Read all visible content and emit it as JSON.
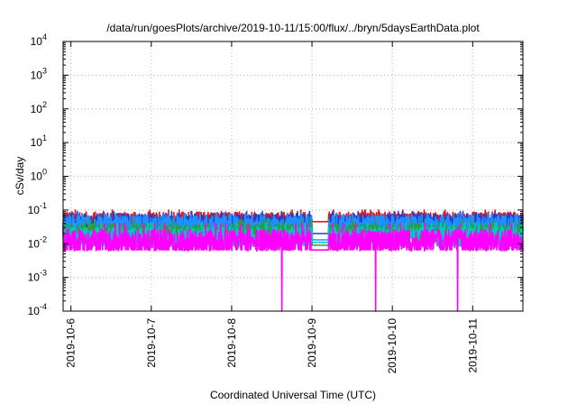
{
  "chart_data": {
    "type": "line",
    "title": "/data/run/goesPlots/archive/2019-10-11/15:00/flux/../bryn/5daysEarthData.plot",
    "xlabel": "Coordinated Universal Time (UTC)",
    "ylabel": "cSv/day",
    "y_scale": "log",
    "ylim": [
      0.0001,
      10000
    ],
    "y_ticks": [
      {
        "value": 0.0001,
        "base": "10",
        "exp": "-4"
      },
      {
        "value": 0.001,
        "base": "10",
        "exp": "-3"
      },
      {
        "value": 0.01,
        "base": "10",
        "exp": "-2"
      },
      {
        "value": 0.1,
        "base": "10",
        "exp": "-1"
      },
      {
        "value": 1,
        "base": "10",
        "exp": "0"
      },
      {
        "value": 10,
        "base": "10",
        "exp": "1"
      },
      {
        "value": 100,
        "base": "10",
        "exp": "2"
      },
      {
        "value": 1000,
        "base": "10",
        "exp": "3"
      },
      {
        "value": 10000,
        "base": "10",
        "exp": "4"
      }
    ],
    "x_ticks": [
      "2019-10-6",
      "2019-10-7",
      "2019-10-8",
      "2019-10-9",
      "2019-10-10",
      "2019-10-11"
    ],
    "xlim": [
      "2019-10-05 21:40",
      "2019-10-11 15:00"
    ],
    "grid": true,
    "data_gap": {
      "start": "2019-10-09 00:00",
      "end": "2019-10-09 05:00"
    },
    "dropouts": [
      "2019-10-08 15:00",
      "2019-10-09 19:00",
      "2019-10-10 19:30"
    ],
    "series": [
      {
        "color": "#e41a1c",
        "base": 0.045,
        "spread": 0.3,
        "spike": 0.1,
        "gap_level": 0.045
      },
      {
        "color": "#1f3fd4",
        "base": 0.04,
        "spread": 0.3,
        "spike": 0.09,
        "gap_level": 0.02
      },
      {
        "color": "#1e90ff",
        "base": 0.033,
        "spread": 0.35,
        "spike": 0.08,
        "gap_level": 0.013
      },
      {
        "color": "#2ca02c",
        "base": 0.02,
        "spread": 0.3,
        "spike": 0.05,
        "gap_level": 0.009
      },
      {
        "color": "#00c8c8",
        "base": 0.016,
        "spread": 0.3,
        "spike": 0.04,
        "gap_level": 0.011
      },
      {
        "color": "#ff00ff",
        "base": 0.011,
        "spread": 0.4,
        "spike": 0.04,
        "gap_level": 0.0065
      }
    ]
  }
}
